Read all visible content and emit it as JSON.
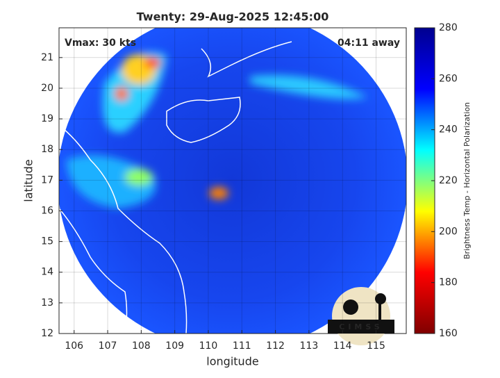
{
  "chart_data": {
    "type": "map",
    "title": "Twenty: 29-Aug-2025 12:45:00",
    "annotations": [
      "Vmax: 30 kts",
      "04:11 away"
    ],
    "xlabel": "longitude",
    "ylabel": "latitude",
    "xlim": [
      105.55,
      115.9
    ],
    "xticks": [
      106,
      107,
      108,
      109,
      110,
      111,
      112,
      113,
      114,
      115
    ],
    "ylim": [
      12,
      21.97
    ],
    "yticks": [
      12,
      13,
      14,
      15,
      16,
      17,
      18,
      19,
      20,
      21
    ],
    "grid": true,
    "colorbar": {
      "label": "Brightness Temp - Horizontal Polarization",
      "lim": [
        160,
        280
      ],
      "ticks": [
        160,
        180,
        200,
        220,
        240,
        260,
        280
      ],
      "colors": [
        "#800000",
        "#ff0000",
        "#ffff00",
        "#00ffff",
        "#0000ff",
        "#00008f"
      ]
    },
    "logo": "CIMSS"
  }
}
